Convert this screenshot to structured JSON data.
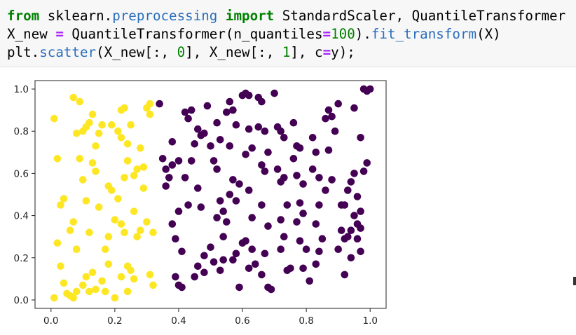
{
  "code": {
    "line1": {
      "kw_from": "from",
      "mod1": " sklearn.",
      "mod2": "preprocessing",
      "kw_import": " import",
      "rest": " StandardScaler, QuantileTransformer"
    },
    "line2": {
      "a": "X_new ",
      "eq": "=",
      "b": " QuantileTransformer(n_quantiles",
      "eq2": "=",
      "num": "100",
      "c": ").",
      "fn": "fit_transform",
      "d": "(X)"
    },
    "line3": {
      "a": "plt.",
      "fn": "scatter",
      "b": "(X_new[:, ",
      "n0": "0",
      "c": "], X_new[:, ",
      "n1": "1",
      "d": "], c",
      "eq": "=",
      "e": "y);"
    }
  },
  "chart_data": {
    "type": "scatter",
    "xlim": [
      -0.05,
      1.05
    ],
    "ylim": [
      -0.04,
      1.04
    ],
    "xticks": [
      0.0,
      0.2,
      0.4,
      0.6,
      0.8,
      1.0
    ],
    "xtick_labels": [
      "0.0",
      "0.2",
      "0.4",
      "0.6",
      "0.8",
      "1.0"
    ],
    "yticks": [
      0.0,
      0.2,
      0.4,
      0.6,
      0.8,
      1.0
    ],
    "ytick_labels": [
      "0.0",
      "0.2",
      "0.4",
      "0.6",
      "0.8",
      "1.0"
    ],
    "grid": false,
    "colors": {
      "class_0": "#fde725",
      "class_1": "#440154"
    },
    "series": [
      {
        "color_key": "class_0",
        "points": [
          [
            0.01,
            0.86
          ],
          [
            0.02,
            0.67
          ],
          [
            0.03,
            0.45
          ],
          [
            0.04,
            0.48
          ],
          [
            0.02,
            0.27
          ],
          [
            0.03,
            0.16
          ],
          [
            0.04,
            0.08
          ],
          [
            0.01,
            0.01
          ],
          [
            0.05,
            0.03
          ],
          [
            0.06,
            0.02
          ],
          [
            0.07,
            0.01
          ],
          [
            0.08,
            0.04
          ],
          [
            0.06,
            0.33
          ],
          [
            0.07,
            0.37
          ],
          [
            0.08,
            0.24
          ],
          [
            0.07,
            0.96
          ],
          [
            0.09,
            0.94
          ],
          [
            0.08,
            0.79
          ],
          [
            0.1,
            0.8
          ],
          [
            0.11,
            0.82
          ],
          [
            0.12,
            0.84
          ],
          [
            0.09,
            0.67
          ],
          [
            0.1,
            0.57
          ],
          [
            0.11,
            0.47
          ],
          [
            0.13,
            0.65
          ],
          [
            0.14,
            0.61
          ],
          [
            0.12,
            0.32
          ],
          [
            0.13,
            0.13
          ],
          [
            0.11,
            0.11
          ],
          [
            0.1,
            0.07
          ],
          [
            0.12,
            0.04
          ],
          [
            0.14,
            0.05
          ],
          [
            0.13,
            0.88
          ],
          [
            0.15,
            0.79
          ],
          [
            0.16,
            0.83
          ],
          [
            0.14,
            0.73
          ],
          [
            0.15,
            0.44
          ],
          [
            0.17,
            0.24
          ],
          [
            0.18,
            0.17
          ],
          [
            0.16,
            0.09
          ],
          [
            0.17,
            0.04
          ],
          [
            0.18,
            0.54
          ],
          [
            0.19,
            0.52
          ],
          [
            0.2,
            0.38
          ],
          [
            0.18,
            0.3
          ],
          [
            0.2,
            0.01
          ],
          [
            0.19,
            0.83
          ],
          [
            0.21,
            0.8
          ],
          [
            0.22,
            0.9
          ],
          [
            0.23,
            0.91
          ],
          [
            0.22,
            0.77
          ],
          [
            0.24,
            0.74
          ],
          [
            0.24,
            0.66
          ],
          [
            0.23,
            0.58
          ],
          [
            0.25,
            0.83
          ],
          [
            0.21,
            0.48
          ],
          [
            0.22,
            0.36
          ],
          [
            0.23,
            0.32
          ],
          [
            0.24,
            0.16
          ],
          [
            0.22,
            0.11
          ],
          [
            0.25,
            0.14
          ],
          [
            0.26,
            0.1
          ],
          [
            0.24,
            0.04
          ],
          [
            0.26,
            0.59
          ],
          [
            0.27,
            0.62
          ],
          [
            0.28,
            0.72
          ],
          [
            0.26,
            0.42
          ],
          [
            0.27,
            0.3
          ],
          [
            0.28,
            0.33
          ],
          [
            0.29,
            0.63
          ],
          [
            0.29,
            0.53
          ],
          [
            0.3,
            0.91
          ],
          [
            0.31,
            0.93
          ],
          [
            0.31,
            0.88
          ],
          [
            0.3,
            0.37
          ],
          [
            0.31,
            0.12
          ],
          [
            0.32,
            0.07
          ],
          [
            0.32,
            0.32
          ]
        ]
      },
      {
        "color_key": "class_1",
        "points": [
          [
            0.34,
            0.93
          ],
          [
            0.35,
            0.67
          ],
          [
            0.36,
            0.62
          ],
          [
            0.38,
            0.64
          ],
          [
            0.37,
            0.58
          ],
          [
            0.36,
            0.54
          ],
          [
            0.38,
            0.75
          ],
          [
            0.4,
            0.66
          ],
          [
            0.39,
            0.29
          ],
          [
            0.41,
            0.23
          ],
          [
            0.4,
            0.07
          ],
          [
            0.41,
            0.06
          ],
          [
            0.42,
            0.58
          ],
          [
            0.43,
            0.45
          ],
          [
            0.4,
            0.42
          ],
          [
            0.38,
            0.36
          ],
          [
            0.39,
            0.11
          ],
          [
            0.42,
            0.89
          ],
          [
            0.44,
            0.9
          ],
          [
            0.43,
            0.86
          ],
          [
            0.45,
            0.74
          ],
          [
            0.44,
            0.66
          ],
          [
            0.46,
            0.81
          ],
          [
            0.47,
            0.78
          ],
          [
            0.48,
            0.79
          ],
          [
            0.46,
            0.53
          ],
          [
            0.47,
            0.44
          ],
          [
            0.48,
            0.21
          ],
          [
            0.46,
            0.16
          ],
          [
            0.45,
            0.11
          ],
          [
            0.48,
            0.13
          ],
          [
            0.5,
            0.25
          ],
          [
            0.51,
            0.18
          ],
          [
            0.49,
            0.92
          ],
          [
            0.5,
            0.73
          ],
          [
            0.52,
            0.84
          ],
          [
            0.51,
            0.66
          ],
          [
            0.53,
            0.76
          ],
          [
            0.52,
            0.62
          ],
          [
            0.53,
            0.47
          ],
          [
            0.54,
            0.42
          ],
          [
            0.52,
            0.39
          ],
          [
            0.54,
            0.3
          ],
          [
            0.55,
            0.37
          ],
          [
            0.54,
            0.19
          ],
          [
            0.53,
            0.14
          ],
          [
            0.55,
            0.89
          ],
          [
            0.56,
            0.94
          ],
          [
            0.57,
            0.9
          ],
          [
            0.58,
            0.83
          ],
          [
            0.56,
            0.73
          ],
          [
            0.57,
            0.57
          ],
          [
            0.56,
            0.5
          ],
          [
            0.59,
            0.55
          ],
          [
            0.58,
            0.47
          ],
          [
            0.6,
            0.27
          ],
          [
            0.58,
            0.22
          ],
          [
            0.57,
            0.19
          ],
          [
            0.59,
            0.06
          ],
          [
            0.6,
            0.97
          ],
          [
            0.61,
            0.98
          ],
          [
            0.62,
            0.97
          ],
          [
            0.62,
            0.81
          ],
          [
            0.61,
            0.69
          ],
          [
            0.63,
            0.72
          ],
          [
            0.62,
            0.52
          ],
          [
            0.63,
            0.39
          ],
          [
            0.61,
            0.28
          ],
          [
            0.63,
            0.24
          ],
          [
            0.64,
            0.17
          ],
          [
            0.62,
            0.15
          ],
          [
            0.65,
            0.96
          ],
          [
            0.66,
            0.94
          ],
          [
            0.65,
            0.82
          ],
          [
            0.67,
            0.8
          ],
          [
            0.66,
            0.64
          ],
          [
            0.68,
            0.7
          ],
          [
            0.67,
            0.61
          ],
          [
            0.66,
            0.45
          ],
          [
            0.68,
            0.35
          ],
          [
            0.67,
            0.22
          ],
          [
            0.66,
            0.12
          ],
          [
            0.68,
            0.06
          ],
          [
            0.69,
            0.05
          ],
          [
            0.7,
            0.98
          ],
          [
            0.71,
            0.82
          ],
          [
            0.72,
            0.8
          ],
          [
            0.73,
            0.77
          ],
          [
            0.71,
            0.62
          ],
          [
            0.72,
            0.56
          ],
          [
            0.73,
            0.58
          ],
          [
            0.74,
            0.45
          ],
          [
            0.72,
            0.38
          ],
          [
            0.73,
            0.3
          ],
          [
            0.72,
            0.24
          ],
          [
            0.74,
            0.14
          ],
          [
            0.75,
            0.15
          ],
          [
            0.76,
            0.84
          ],
          [
            0.77,
            0.73
          ],
          [
            0.78,
            0.72
          ],
          [
            0.76,
            0.67
          ],
          [
            0.77,
            0.59
          ],
          [
            0.79,
            0.55
          ],
          [
            0.78,
            0.46
          ],
          [
            0.77,
            0.37
          ],
          [
            0.79,
            0.41
          ],
          [
            0.78,
            0.28
          ],
          [
            0.8,
            0.24
          ],
          [
            0.79,
            0.15
          ],
          [
            0.81,
            0.09
          ],
          [
            0.82,
            0.77
          ],
          [
            0.83,
            0.7
          ],
          [
            0.82,
            0.62
          ],
          [
            0.84,
            0.58
          ],
          [
            0.83,
            0.36
          ],
          [
            0.84,
            0.45
          ],
          [
            0.85,
            0.29
          ],
          [
            0.84,
            0.23
          ],
          [
            0.83,
            0.17
          ],
          [
            0.86,
            0.86
          ],
          [
            0.87,
            0.71
          ],
          [
            0.88,
            0.57
          ],
          [
            0.86,
            0.52
          ],
          [
            0.87,
            0.9
          ],
          [
            0.88,
            0.87
          ],
          [
            0.89,
            0.8
          ],
          [
            0.9,
            0.93
          ],
          [
            0.91,
            0.45
          ],
          [
            0.92,
            0.45
          ],
          [
            0.93,
            0.52
          ],
          [
            0.94,
            0.56
          ],
          [
            0.91,
            0.33
          ],
          [
            0.92,
            0.29
          ],
          [
            0.9,
            0.24
          ],
          [
            0.93,
            0.3
          ],
          [
            0.94,
            0.33
          ],
          [
            0.92,
            0.12
          ],
          [
            0.95,
            0.6
          ],
          [
            0.96,
            0.49
          ],
          [
            0.97,
            0.34
          ],
          [
            0.95,
            0.4
          ],
          [
            0.96,
            0.36
          ],
          [
            0.96,
            0.29
          ],
          [
            0.94,
            0.2
          ],
          [
            0.97,
            0.23
          ],
          [
            0.98,
            0.61
          ],
          [
            0.99,
            0.65
          ],
          [
            0.97,
            0.42
          ],
          [
            0.98,
            1.0
          ],
          [
            0.99,
            0.99
          ],
          [
            1.0,
            1.0
          ],
          [
            0.95,
            0.91
          ],
          [
            0.97,
            0.77
          ]
        ]
      }
    ]
  }
}
